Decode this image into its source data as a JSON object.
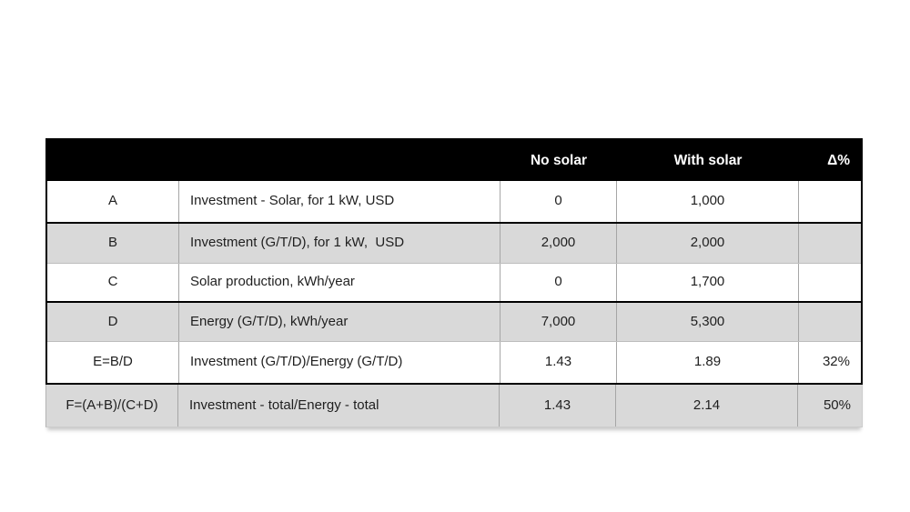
{
  "table": {
    "title_semantics": "Solar vs no-solar investment and energy comparison table",
    "header": {
      "id": "",
      "description": "",
      "no_solar": "No solar",
      "with_solar": "With solar",
      "delta": "Δ%"
    },
    "rows": [
      {
        "id": "A",
        "description": "Investment - Solar, for 1 kW, USD",
        "no_solar": "0",
        "with_solar": "1,000",
        "delta": ""
      },
      {
        "id": "B",
        "description": "Investment (G/T/D), for 1 kW,  USD",
        "no_solar": "2,000",
        "with_solar": "2,000",
        "delta": ""
      },
      {
        "id": "C",
        "description": "Solar production, kWh/year",
        "no_solar": "0",
        "with_solar": "1,700",
        "delta": ""
      },
      {
        "id": "D",
        "description": "Energy (G/T/D), kWh/year",
        "no_solar": "7,000",
        "with_solar": "5,300",
        "delta": ""
      },
      {
        "id": "E=B/D",
        "description": "Investment (G/T/D)/Energy (G/T/D)",
        "no_solar": "1.43",
        "with_solar": "1.89",
        "delta": "32%"
      },
      {
        "id": "F=(A+B)/(C+D)",
        "description": "Investment - total/Energy - total",
        "no_solar": "1.43",
        "with_solar": "2.14",
        "delta": "50%"
      }
    ],
    "colors": {
      "header_bg": "#000000",
      "header_text": "#ffffff",
      "band_gray": "#d9d9d9",
      "grid_line": "#a6a6a6",
      "thick_border": "#000000",
      "body_text": "#1f1f1f"
    }
  }
}
